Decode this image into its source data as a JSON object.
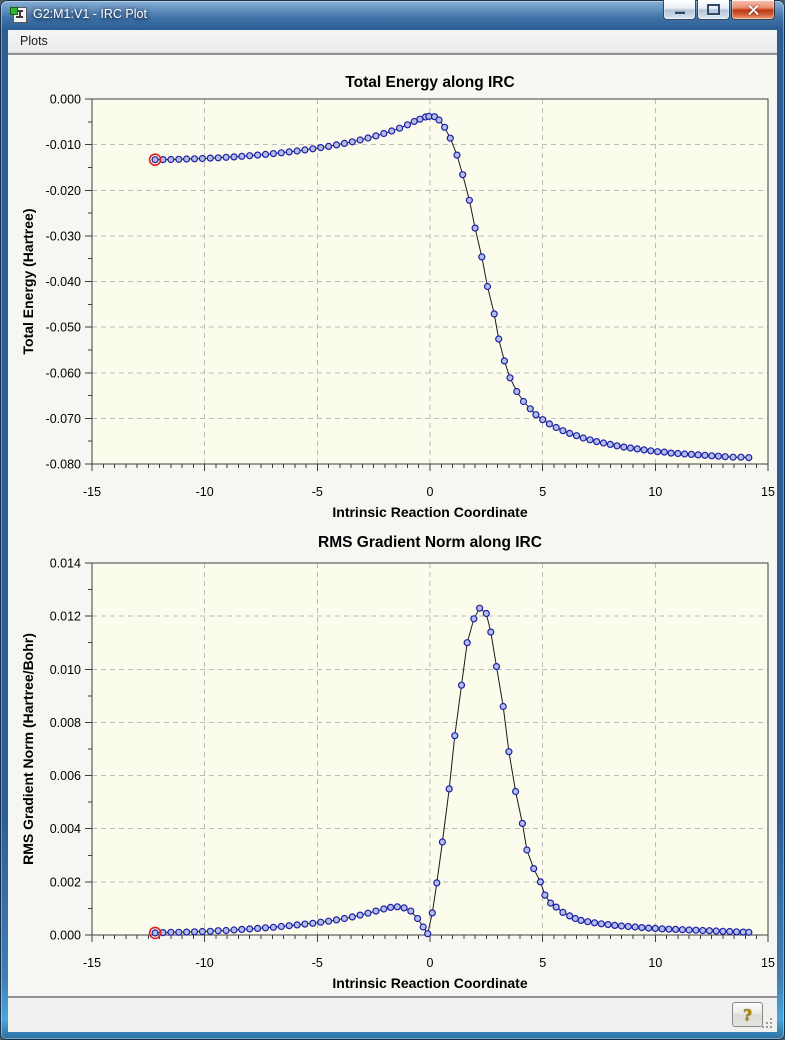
{
  "window": {
    "title": "G2:M1:V1 - IRC Plot",
    "controls": {
      "minimize": "minimize",
      "maximize": "maximize",
      "close": "close"
    }
  },
  "menu": {
    "items": [
      {
        "label": "Plots"
      }
    ]
  },
  "status_bar": {
    "help_label": "?"
  },
  "colors": {
    "titlebar_blue": "#2b5d95",
    "plot_background": "#fcfcec",
    "grid": "#bcbcba",
    "frame": "#3f3f3f",
    "line": "#1a1a1a",
    "marker_fill": "#b2bfea",
    "marker_stroke": "#1f1fa6",
    "highlight_ring": "#dd2020",
    "text": "#000000"
  },
  "chart_data": [
    {
      "type": "line",
      "title": "Total Energy along IRC",
      "xlabel": "Intrinsic Reaction Coordinate",
      "ylabel": "Total Energy (Hartree)",
      "xlim": [
        -15,
        15
      ],
      "ylim": [
        -0.08,
        0.0
      ],
      "grid": "dashed",
      "legend": "none",
      "marker": "circle",
      "first_point_highlighted": true,
      "x_major_ticks": [
        -15,
        -10,
        -5,
        0,
        5,
        10,
        15
      ],
      "x_tick_labels": [
        "-15",
        "-10",
        "-5",
        "0",
        "5",
        "10",
        "15"
      ],
      "x_minor_step": 0.5,
      "y_major_ticks": [
        0.0,
        -0.01,
        -0.02,
        -0.03,
        -0.04,
        -0.05,
        -0.06,
        -0.07,
        -0.08
      ],
      "y_tick_labels": [
        "0.000",
        "-0.010",
        "-0.020",
        "-0.030",
        "-0.040",
        "-0.050",
        "-0.060",
        "-0.070",
        "-0.080"
      ],
      "y_minor_step": 0.005,
      "points": [
        [
          -12.2,
          -0.0133
        ],
        [
          -11.85,
          -0.01328
        ],
        [
          -11.5,
          -0.01325
        ],
        [
          -11.15,
          -0.01321
        ],
        [
          -10.8,
          -0.01316
        ],
        [
          -10.45,
          -0.0131
        ],
        [
          -10.1,
          -0.01304
        ],
        [
          -9.75,
          -0.01296
        ],
        [
          -9.4,
          -0.01288
        ],
        [
          -9.05,
          -0.01278
        ],
        [
          -8.7,
          -0.01268
        ],
        [
          -8.35,
          -0.01256
        ],
        [
          -8.0,
          -0.01243
        ],
        [
          -7.65,
          -0.01229
        ],
        [
          -7.3,
          -0.01214
        ],
        [
          -6.95,
          -0.01197
        ],
        [
          -6.6,
          -0.01179
        ],
        [
          -6.25,
          -0.0116
        ],
        [
          -5.9,
          -0.01139
        ],
        [
          -5.55,
          -0.01116
        ],
        [
          -5.2,
          -0.01092
        ],
        [
          -4.85,
          -0.01066
        ],
        [
          -4.5,
          -0.01038
        ],
        [
          -4.15,
          -0.01007
        ],
        [
          -3.8,
          -0.00974
        ],
        [
          -3.45,
          -0.00938
        ],
        [
          -3.1,
          -0.00898
        ],
        [
          -2.75,
          -0.00855
        ],
        [
          -2.4,
          -0.00808
        ],
        [
          -2.05,
          -0.00757
        ],
        [
          -1.7,
          -0.00701
        ],
        [
          -1.35,
          -0.00641
        ],
        [
          -1.0,
          -0.00566
        ],
        [
          -0.7,
          -0.00493
        ],
        [
          -0.45,
          -0.00442
        ],
        [
          -0.2,
          -0.00395
        ],
        [
          -0.05,
          -0.00382
        ],
        [
          0.2,
          -0.00389
        ],
        [
          0.4,
          -0.0046
        ],
        [
          0.65,
          -0.0062
        ],
        [
          0.9,
          -0.0086
        ],
        [
          1.2,
          -0.0123
        ],
        [
          1.45,
          -0.0166
        ],
        [
          1.75,
          -0.0222
        ],
        [
          2.0,
          -0.0283
        ],
        [
          2.3,
          -0.0346
        ],
        [
          2.55,
          -0.0411
        ],
        [
          2.85,
          -0.0471
        ],
        [
          3.05,
          -0.0526
        ],
        [
          3.3,
          -0.0574
        ],
        [
          3.55,
          -0.0611
        ],
        [
          3.85,
          -0.0641
        ],
        [
          4.15,
          -0.0663
        ],
        [
          4.45,
          -0.0679
        ],
        [
          4.7,
          -0.0692
        ],
        [
          5.0,
          -0.0703
        ],
        [
          5.3,
          -0.0712
        ],
        [
          5.6,
          -0.072
        ],
        [
          5.9,
          -0.0727
        ],
        [
          6.2,
          -0.0733
        ],
        [
          6.5,
          -0.0738
        ],
        [
          6.8,
          -0.0743
        ],
        [
          7.1,
          -0.0747
        ],
        [
          7.4,
          -0.0751
        ],
        [
          7.7,
          -0.0754
        ],
        [
          8.0,
          -0.0757
        ],
        [
          8.3,
          -0.076
        ],
        [
          8.6,
          -0.0763
        ],
        [
          8.9,
          -0.0765
        ],
        [
          9.2,
          -0.0767
        ],
        [
          9.5,
          -0.0769
        ],
        [
          9.8,
          -0.0771
        ],
        [
          10.1,
          -0.0773
        ],
        [
          10.4,
          -0.0774
        ],
        [
          10.7,
          -0.0776
        ],
        [
          11.0,
          -0.0777
        ],
        [
          11.3,
          -0.0778
        ],
        [
          11.6,
          -0.0779
        ],
        [
          11.9,
          -0.078
        ],
        [
          12.2,
          -0.0781
        ],
        [
          12.5,
          -0.0782
        ],
        [
          12.8,
          -0.0783
        ],
        [
          13.1,
          -0.0784
        ],
        [
          13.45,
          -0.0785
        ],
        [
          13.8,
          -0.0785
        ],
        [
          14.15,
          -0.0786
        ]
      ]
    },
    {
      "type": "line",
      "title": "RMS Gradient Norm along IRC",
      "xlabel": "Intrinsic Reaction Coordinate",
      "ylabel": "RMS Gradient Norm (Hartree/Bohr)",
      "xlim": [
        -15,
        15
      ],
      "ylim": [
        0.0,
        0.014
      ],
      "grid": "dashed",
      "legend": "none",
      "marker": "circle",
      "first_point_highlighted": true,
      "x_major_ticks": [
        -15,
        -10,
        -5,
        0,
        5,
        10,
        15
      ],
      "x_tick_labels": [
        "-15",
        "-10",
        "-5",
        "0",
        "5",
        "10",
        "15"
      ],
      "x_minor_step": 0.5,
      "y_major_ticks": [
        0.014,
        0.012,
        0.01,
        0.008,
        0.006,
        0.004,
        0.002,
        0.0
      ],
      "y_tick_labels": [
        "0.014",
        "0.012",
        "0.010",
        "0.008",
        "0.006",
        "0.004",
        "0.002",
        "0.000"
      ],
      "y_minor_step": 0.001,
      "points": [
        [
          -12.2,
          8e-05
        ],
        [
          -11.85,
          9e-05
        ],
        [
          -11.5,
          0.0001
        ],
        [
          -11.15,
          0.0001
        ],
        [
          -10.8,
          0.00011
        ],
        [
          -10.45,
          0.00012
        ],
        [
          -10.1,
          0.00013
        ],
        [
          -9.75,
          0.00014
        ],
        [
          -9.4,
          0.00016
        ],
        [
          -9.05,
          0.00017
        ],
        [
          -8.7,
          0.00019
        ],
        [
          -8.35,
          0.00021
        ],
        [
          -8.0,
          0.00023
        ],
        [
          -7.65,
          0.00025
        ],
        [
          -7.3,
          0.00027
        ],
        [
          -6.95,
          0.00029
        ],
        [
          -6.6,
          0.00032
        ],
        [
          -6.25,
          0.00035
        ],
        [
          -5.9,
          0.00038
        ],
        [
          -5.55,
          0.00041
        ],
        [
          -5.2,
          0.00044
        ],
        [
          -4.85,
          0.00048
        ],
        [
          -4.5,
          0.00052
        ],
        [
          -4.15,
          0.00057
        ],
        [
          -3.8,
          0.00062
        ],
        [
          -3.45,
          0.00068
        ],
        [
          -3.1,
          0.00075
        ],
        [
          -2.75,
          0.00082
        ],
        [
          -2.4,
          0.0009
        ],
        [
          -2.05,
          0.00098
        ],
        [
          -1.75,
          0.00104
        ],
        [
          -1.45,
          0.00106
        ],
        [
          -1.15,
          0.00102
        ],
        [
          -0.85,
          0.0009
        ],
        [
          -0.55,
          0.00062
        ],
        [
          -0.3,
          0.0003
        ],
        [
          -0.1,
          5e-05
        ],
        [
          0.1,
          0.00083
        ],
        [
          0.3,
          0.00196
        ],
        [
          0.55,
          0.0035
        ],
        [
          0.85,
          0.0055
        ],
        [
          1.1,
          0.0075
        ],
        [
          1.4,
          0.0094
        ],
        [
          1.65,
          0.011
        ],
        [
          1.95,
          0.0119
        ],
        [
          2.2,
          0.0123
        ],
        [
          2.5,
          0.0121
        ],
        [
          2.7,
          0.0114
        ],
        [
          2.95,
          0.0101
        ],
        [
          3.25,
          0.0086
        ],
        [
          3.5,
          0.0069
        ],
        [
          3.8,
          0.0054
        ],
        [
          4.1,
          0.0042
        ],
        [
          4.3,
          0.0032
        ],
        [
          4.6,
          0.0025
        ],
        [
          4.9,
          0.002
        ],
        [
          5.1,
          0.0015
        ],
        [
          5.35,
          0.0012
        ],
        [
          5.6,
          0.00105
        ],
        [
          5.9,
          0.00085
        ],
        [
          6.2,
          0.00072
        ],
        [
          6.45,
          0.00062
        ],
        [
          6.7,
          0.00055
        ],
        [
          7.0,
          0.0005
        ],
        [
          7.3,
          0.00046
        ],
        [
          7.6,
          0.00042
        ],
        [
          7.9,
          0.00039
        ],
        [
          8.2,
          0.00036
        ],
        [
          8.5,
          0.00034
        ],
        [
          8.8,
          0.00032
        ],
        [
          9.1,
          0.0003
        ],
        [
          9.4,
          0.00028
        ],
        [
          9.7,
          0.00026
        ],
        [
          10.0,
          0.00025
        ],
        [
          10.3,
          0.00023
        ],
        [
          10.6,
          0.00022
        ],
        [
          10.9,
          0.00021
        ],
        [
          11.2,
          0.0002
        ],
        [
          11.5,
          0.00019
        ],
        [
          11.8,
          0.00018
        ],
        [
          12.1,
          0.00017
        ],
        [
          12.4,
          0.00016
        ],
        [
          12.7,
          0.00015
        ],
        [
          13.0,
          0.00014
        ],
        [
          13.3,
          0.00013
        ],
        [
          13.6,
          0.00012
        ],
        [
          13.9,
          0.00011
        ],
        [
          14.15,
          0.0001
        ]
      ]
    }
  ]
}
